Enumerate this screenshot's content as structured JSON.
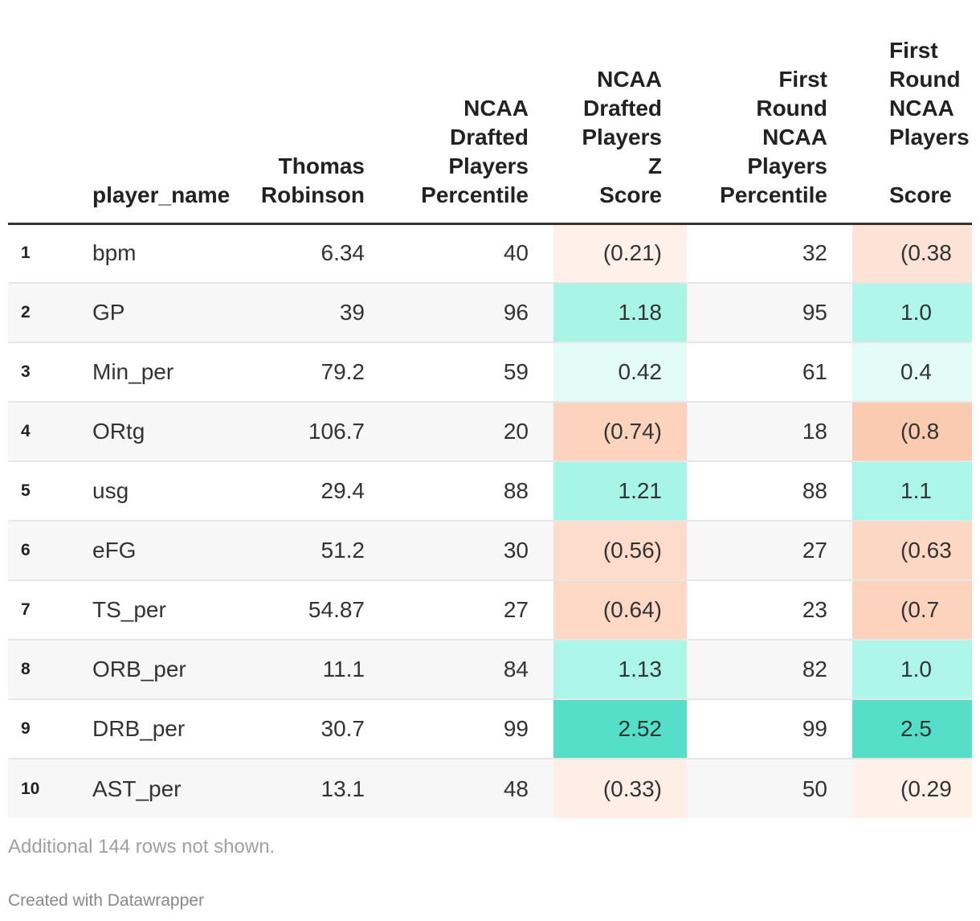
{
  "table": {
    "headers": {
      "num": "",
      "name": "player_name",
      "tr": [
        "Thomas",
        "Robinson"
      ],
      "pct1": [
        "NCAA",
        "Drafted",
        "Players",
        "Percentile"
      ],
      "z1": [
        "NCAA",
        "Drafted",
        "Players",
        "Z",
        "Score"
      ],
      "pct2": [
        "First",
        "Round",
        "NCAA",
        "Players",
        "Percentile"
      ],
      "z2": [
        "First",
        "Round",
        "NCAA",
        "Players",
        "",
        "Score"
      ]
    },
    "rows": [
      {
        "num": "1",
        "name": "bpm",
        "tr": "6.34",
        "pct1": "40",
        "z1": "(0.21)",
        "pct2": "32",
        "z2": "(0.38",
        "z1_color": "#fff1ea",
        "z2_color": "#fde3d6"
      },
      {
        "num": "2",
        "name": "GP",
        "tr": "39",
        "pct1": "96",
        "z1": "1.18",
        "pct2": "95",
        "z2": "1.0",
        "z1_color": "#a8f5e8",
        "z2_color": "#b0f6ea"
      },
      {
        "num": "3",
        "name": "Min_per",
        "tr": "79.2",
        "pct1": "59",
        "z1": "0.42",
        "pct2": "61",
        "z2": "0.4",
        "z1_color": "#e3fcf7",
        "z2_color": "#e3fcf7"
      },
      {
        "num": "4",
        "name": "ORtg",
        "tr": "106.7",
        "pct1": "20",
        "z1": "(0.74)",
        "pct2": "18",
        "z2": "(0.8",
        "z1_color": "#fcd4be",
        "z2_color": "#fbcbb1"
      },
      {
        "num": "5",
        "name": "usg",
        "tr": "29.4",
        "pct1": "88",
        "z1": "1.21",
        "pct2": "88",
        "z2": "1.1",
        "z1_color": "#a6f5e7",
        "z2_color": "#acf6e9"
      },
      {
        "num": "6",
        "name": "eFG",
        "tr": "51.2",
        "pct1": "30",
        "z1": "(0.56)",
        "pct2": "27",
        "z2": "(0.63",
        "z1_color": "#fddccb",
        "z2_color": "#fcd7c4"
      },
      {
        "num": "7",
        "name": "TS_per",
        "tr": "54.87",
        "pct1": "27",
        "z1": "(0.64)",
        "pct2": "23",
        "z2": "(0.7",
        "z1_color": "#fcd8c5",
        "z2_color": "#fcd3bd"
      },
      {
        "num": "8",
        "name": "ORB_per",
        "tr": "11.1",
        "pct1": "84",
        "z1": "1.13",
        "pct2": "82",
        "z2": "1.0",
        "z1_color": "#abf6e8",
        "z2_color": "#aff6ea"
      },
      {
        "num": "9",
        "name": "DRB_per",
        "tr": "30.7",
        "pct1": "99",
        "z1": "2.52",
        "pct2": "99",
        "z2": "2.5",
        "z1_color": "#55dfc8",
        "z2_color": "#55dfc8"
      },
      {
        "num": "10",
        "name": "AST_per",
        "tr": "13.1",
        "pct1": "48",
        "z1": "(0.33)",
        "pct2": "50",
        "z2": "(0.29",
        "z1_color": "#feeee5",
        "z2_color": "#fff0e8"
      }
    ]
  },
  "footer": {
    "note": "Additional 144 rows not shown.",
    "credit": "Created with Datawrapper"
  }
}
